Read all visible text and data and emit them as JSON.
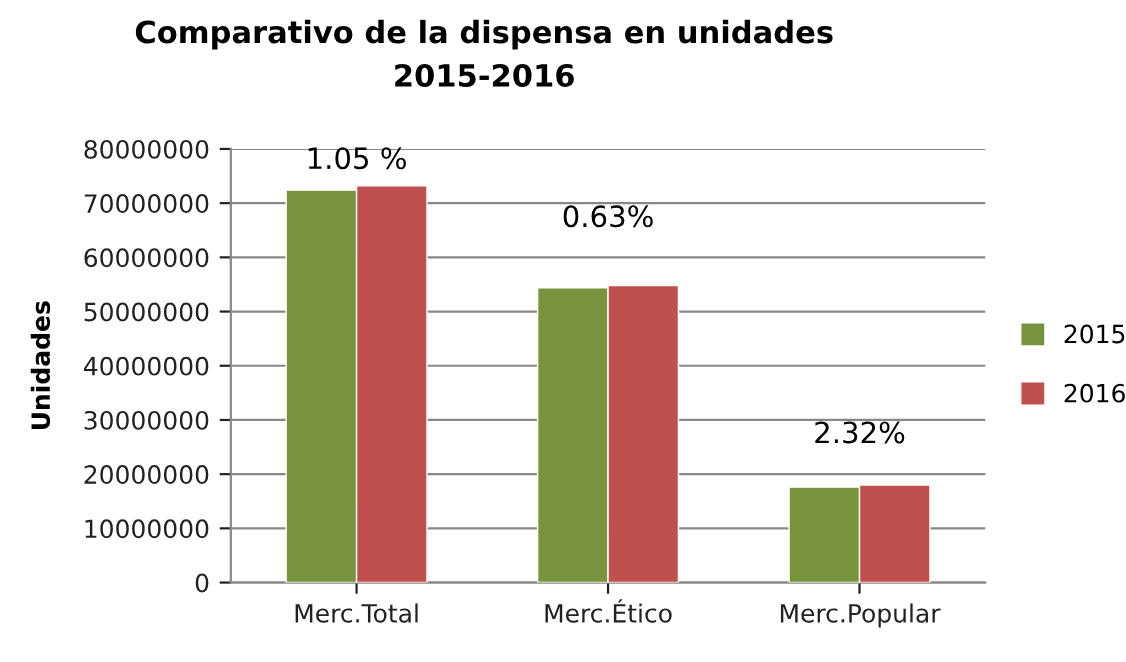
{
  "chart_data": {
    "type": "bar",
    "title": "Comparativo de la dispensa en unidades\n2015-2016",
    "ylabel": "Unidades",
    "categories": [
      "Merc.Total",
      "Merc.Ético",
      "Merc.Popular"
    ],
    "series": [
      {
        "name": "2015",
        "color": "#77933c",
        "values": [
          72400000,
          54400000,
          17600000
        ]
      },
      {
        "name": "2016",
        "color": "#c0504d",
        "values": [
          73200000,
          54800000,
          18000000
        ]
      }
    ],
    "ylim": [
      0,
      80000000
    ],
    "yticks": [
      0,
      10000000,
      20000000,
      30000000,
      40000000,
      50000000,
      60000000,
      70000000,
      80000000
    ],
    "grid": "y",
    "legend": "right",
    "annotations": [
      "1.05 %",
      "0.63%",
      "2.32%"
    ]
  }
}
